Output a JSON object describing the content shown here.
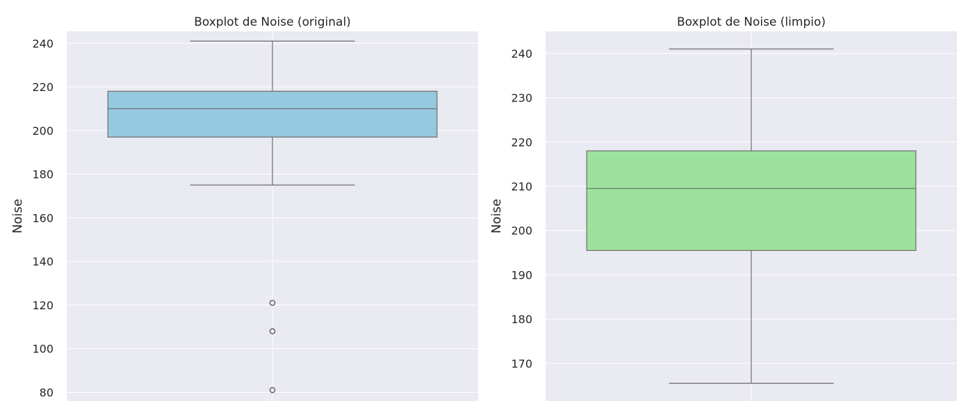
{
  "chart_data": [
    {
      "type": "box",
      "title": "Boxplot de Noise (original)",
      "ylabel": "Noise",
      "xlabel": "",
      "ylim": [
        76,
        245.5
      ],
      "yticks": [
        80,
        100,
        120,
        140,
        160,
        180,
        200,
        220,
        240
      ],
      "grid": true,
      "color": "#95c9df",
      "box": {
        "whisker_low": 175,
        "q1": 197,
        "median": 210,
        "q3": 218,
        "whisker_high": 241
      },
      "outliers": [
        121,
        108,
        81
      ]
    },
    {
      "type": "box",
      "title": "Boxplot de Noise (limpio)",
      "ylabel": "Noise",
      "xlabel": "",
      "ylim": [
        161.5,
        245
      ],
      "yticks": [
        170,
        180,
        190,
        200,
        210,
        220,
        230,
        240
      ],
      "grid": true,
      "color": "#9de29c",
      "box": {
        "whisker_low": 165.5,
        "q1": 195.5,
        "median": 209.5,
        "q3": 218,
        "whisker_high": 241
      },
      "outliers": []
    }
  ]
}
